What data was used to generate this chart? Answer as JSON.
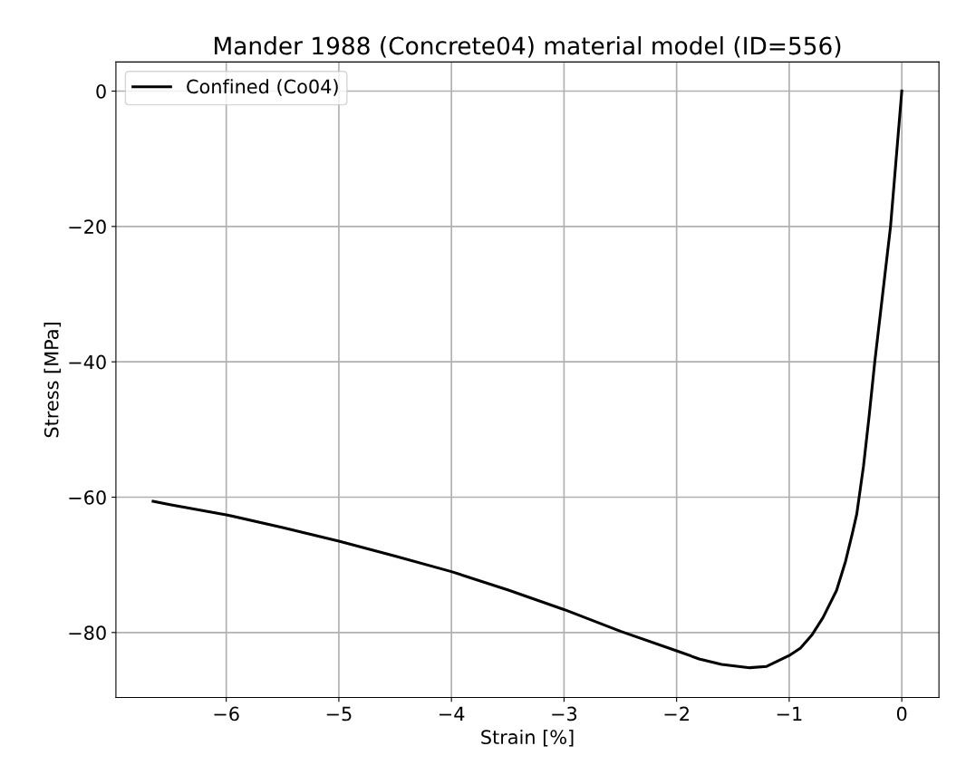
{
  "chart_data": {
    "type": "line",
    "title": "Mander 1988 (Concrete04) material model (ID=556)",
    "xlabel": "Strain [%]",
    "ylabel": "Stress [MPa]",
    "series": [
      {
        "name": "Confined (Co04)",
        "color": "#000000",
        "x": [
          -6.65,
          -6.5,
          -6,
          -5.5,
          -5,
          -4.5,
          -4,
          -3.5,
          -3,
          -2.5,
          -2,
          -1.8,
          -1.6,
          -1.35,
          -1.2,
          -1,
          -0.9,
          -0.8,
          -0.7,
          -0.58,
          -0.5,
          -0.44,
          -0.4,
          -0.34,
          -0.29,
          -0.24,
          -0.17,
          -0.1,
          -0.05,
          0
        ],
        "values": [
          -60.6,
          -61.1,
          -62.6,
          -64.5,
          -66.5,
          -68.7,
          -71.0,
          -73.7,
          -76.6,
          -79.8,
          -82.7,
          -83.9,
          -84.7,
          -85.2,
          -85.0,
          -83.4,
          -82.3,
          -80.4,
          -77.8,
          -73.8,
          -69.5,
          -65.4,
          -62.5,
          -55.4,
          -48,
          -40,
          -30,
          -20,
          -10,
          0
        ]
      }
    ],
    "xlim": [
      -6.98,
      0.33
    ],
    "ylim": [
      -89.6,
      4.3
    ],
    "xticks": [
      {
        "value": -6,
        "label": "−6"
      },
      {
        "value": -5,
        "label": "−5"
      },
      {
        "value": -4,
        "label": "−4"
      },
      {
        "value": -3,
        "label": "−3"
      },
      {
        "value": -2,
        "label": "−2"
      },
      {
        "value": -1,
        "label": "−1"
      },
      0
    ],
    "yticks": [
      {
        "value": -80,
        "label": "−80"
      },
      {
        "value": -60,
        "label": "−60"
      },
      {
        "value": -40,
        "label": "−40"
      },
      {
        "value": -20,
        "label": "−20"
      },
      0
    ],
    "grid": true,
    "legend": "top left",
    "line_style": "solid"
  }
}
